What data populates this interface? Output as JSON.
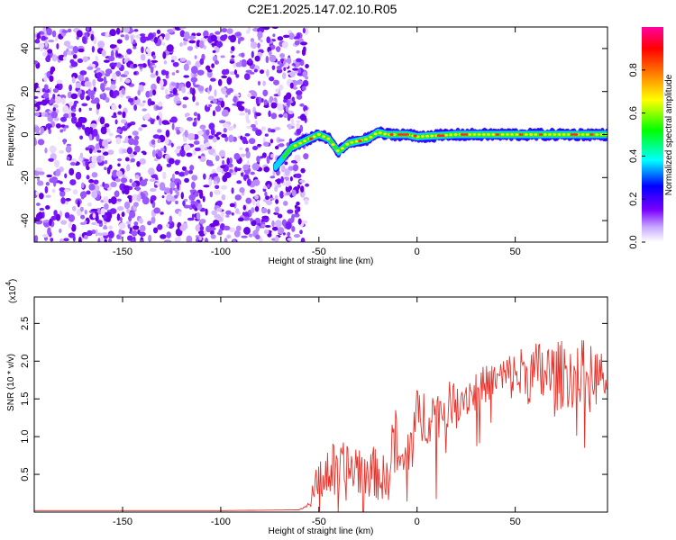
{
  "title": "C2E1.2025.147.02.10.R05",
  "chart_data": [
    {
      "type": "heatmap",
      "xlabel": "Height of straight line (km)",
      "ylabel": "Frequency (Hz)",
      "xlim": [
        -195,
        97
      ],
      "ylim": [
        -50,
        50
      ],
      "xticks": [
        -150,
        -100,
        -50,
        0,
        50
      ],
      "yticks": [
        -40,
        -20,
        0,
        20,
        40
      ],
      "colorbar": {
        "label": "Normalized spectral amplitude",
        "range": [
          0,
          1
        ],
        "ticks": [
          "0.0",
          "0.2",
          "0.4",
          "0.6",
          "0.8"
        ],
        "tick_values": [
          0.0,
          0.2,
          0.4,
          0.6,
          0.8
        ],
        "colors": [
          "#ffffff",
          "#7a00ff",
          "#0000ff",
          "#00ffff",
          "#00ff00",
          "#ffff00",
          "#ff8000",
          "#ff0000",
          "#ff00a0"
        ]
      },
      "noise_region_x": [
        -195,
        -62
      ],
      "signal_band": {
        "x": [
          -72,
          -64,
          -55,
          -50,
          -45,
          -40,
          -35,
          -30,
          -25,
          -20,
          -15,
          -10,
          -5,
          0,
          20,
          40,
          60,
          80,
          97
        ],
        "freq": [
          -15,
          -6,
          -2,
          0,
          -2,
          -8,
          -4,
          -3,
          -2,
          1,
          0,
          0,
          0,
          -1,
          0,
          0,
          0,
          0,
          0
        ]
      },
      "grid": false
    },
    {
      "type": "line",
      "xlabel": "Height of straight line (km)",
      "ylabel": "SNR (10 * v/v)",
      "yscale_label": "(x10",
      "yscale_exp": "4",
      "xlim": [
        -195,
        97
      ],
      "ylim": [
        0,
        2.85
      ],
      "xticks": [
        -150,
        -100,
        -50,
        0,
        50
      ],
      "yticks": [
        "0.5",
        "1.0",
        "1.5",
        "2.0",
        "2.5"
      ],
      "ytick_values": [
        0.5,
        1.0,
        1.5,
        2.0,
        2.5
      ],
      "color": "#e8322a",
      "series": [
        {
          "x": [
            -195,
            -150,
            -100,
            -60,
            -55,
            -50,
            -45,
            -40,
            -35,
            -30,
            -25,
            -20,
            -15,
            -12,
            -8,
            -4,
            0,
            5,
            10,
            15,
            20,
            25,
            30,
            35,
            40,
            45,
            50,
            55,
            60,
            65,
            70,
            75,
            80,
            85,
            90,
            97
          ],
          "y": [
            0.02,
            0.02,
            0.02,
            0.03,
            0.1,
            0.45,
            0.55,
            0.5,
            0.55,
            0.6,
            0.55,
            0.5,
            0.4,
            1.0,
            0.55,
            0.9,
            1.2,
            1.3,
            1.3,
            1.4,
            1.5,
            1.55,
            1.6,
            1.7,
            1.75,
            1.8,
            1.8,
            1.85,
            1.8,
            1.85,
            1.75,
            1.85,
            1.8,
            1.9,
            1.8,
            1.75
          ],
          "amp": [
            0,
            0,
            0,
            0,
            0.05,
            0.3,
            0.4,
            0.4,
            0.4,
            0.4,
            0.35,
            0.35,
            0.3,
            0.6,
            0.3,
            0.45,
            0.45,
            0.4,
            0.35,
            0.3,
            0.3,
            0.3,
            0.3,
            0.25,
            0.25,
            0.3,
            0.35,
            0.4,
            0.45,
            0.5,
            0.5,
            0.45,
            0.45,
            0.4,
            0.4,
            0.35
          ]
        }
      ],
      "grid": false
    }
  ]
}
